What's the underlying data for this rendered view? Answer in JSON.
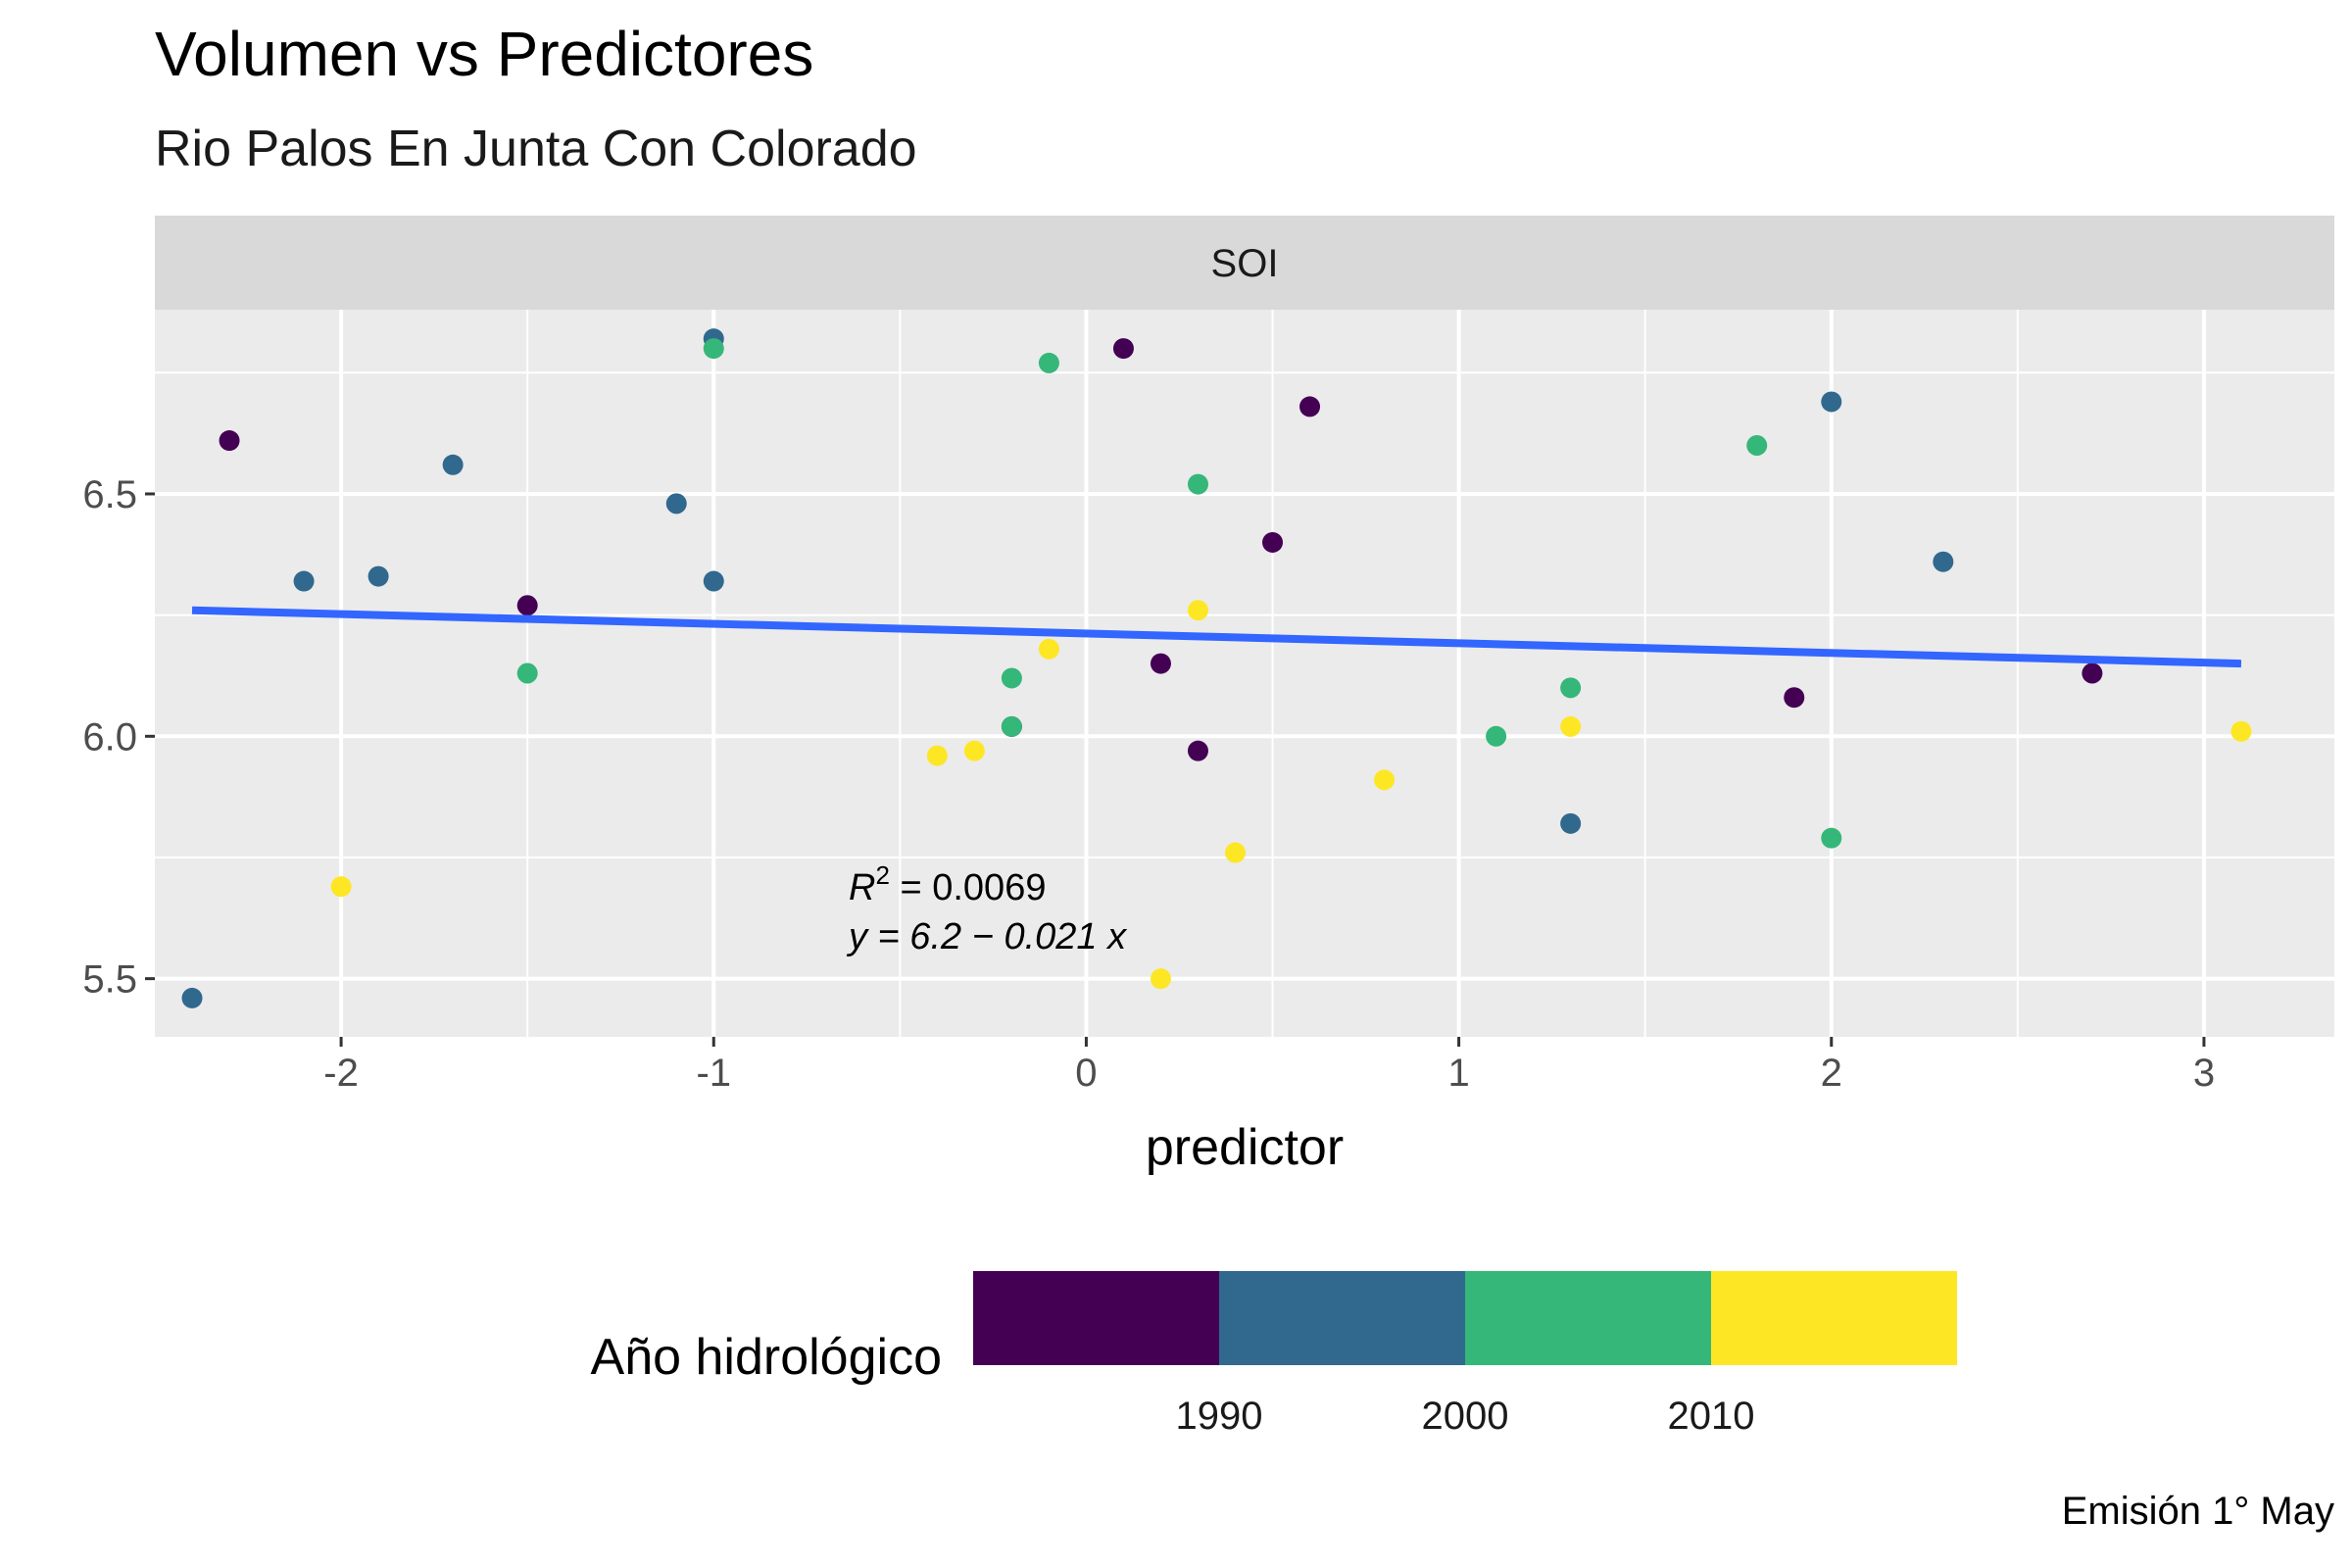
{
  "title": "Volumen vs Predictores",
  "subtitle": "Rio Palos En Junta Con Colorado",
  "caption": "Emisión 1° May",
  "chart_data": {
    "type": "scatter",
    "facet": "SOI",
    "xlabel": "predictor",
    "ylabel": "",
    "xlim": [
      -2.5,
      3.35
    ],
    "ylim": [
      5.38,
      6.88
    ],
    "xticks": [
      -2,
      -1,
      0,
      1,
      2,
      3
    ],
    "xtick_labels": [
      "-2",
      "-1",
      "0",
      "1",
      "2",
      "3"
    ],
    "yticks": [
      5.5,
      6.0,
      6.5
    ],
    "ytick_labels": [
      "5.5",
      "6.0",
      "6.5"
    ],
    "grid": true,
    "points": [
      {
        "x": -2.4,
        "y": 5.46,
        "year": 1992
      },
      {
        "x": -2.3,
        "y": 6.61,
        "year": 1983
      },
      {
        "x": -2.1,
        "y": 6.32,
        "year": 1992
      },
      {
        "x": -2.0,
        "y": 5.69,
        "year": 2015
      },
      {
        "x": -1.9,
        "y": 6.33,
        "year": 1992
      },
      {
        "x": -1.7,
        "y": 6.56,
        "year": 1992
      },
      {
        "x": -1.5,
        "y": 6.27,
        "year": 1983
      },
      {
        "x": -1.5,
        "y": 6.13,
        "year": 2005
      },
      {
        "x": -1.1,
        "y": 6.48,
        "year": 1992
      },
      {
        "x": -1.0,
        "y": 6.82,
        "year": 1992
      },
      {
        "x": -1.0,
        "y": 6.8,
        "year": 2005
      },
      {
        "x": -1.0,
        "y": 6.32,
        "year": 1992
      },
      {
        "x": -0.4,
        "y": 5.96,
        "year": 2015
      },
      {
        "x": -0.3,
        "y": 5.97,
        "year": 2015
      },
      {
        "x": -0.2,
        "y": 6.12,
        "year": 2005
      },
      {
        "x": -0.2,
        "y": 6.02,
        "year": 1983
      },
      {
        "x": -0.2,
        "y": 6.02,
        "year": 2005
      },
      {
        "x": -0.1,
        "y": 6.77,
        "year": 2005
      },
      {
        "x": -0.1,
        "y": 6.18,
        "year": 2015
      },
      {
        "x": 0.1,
        "y": 6.8,
        "year": 1983
      },
      {
        "x": 0.2,
        "y": 6.15,
        "year": 1983
      },
      {
        "x": 0.2,
        "y": 5.5,
        "year": 2015
      },
      {
        "x": 0.3,
        "y": 6.52,
        "year": 2005
      },
      {
        "x": 0.3,
        "y": 6.26,
        "year": 2015
      },
      {
        "x": 0.3,
        "y": 5.97,
        "year": 1983
      },
      {
        "x": 0.4,
        "y": 5.76,
        "year": 2015
      },
      {
        "x": 0.5,
        "y": 6.4,
        "year": 1983
      },
      {
        "x": 0.6,
        "y": 6.68,
        "year": 1983
      },
      {
        "x": 0.8,
        "y": 5.91,
        "year": 2015
      },
      {
        "x": 1.1,
        "y": 6.0,
        "year": 2005
      },
      {
        "x": 1.3,
        "y": 6.1,
        "year": 2005
      },
      {
        "x": 1.3,
        "y": 6.02,
        "year": 2015
      },
      {
        "x": 1.3,
        "y": 5.82,
        "year": 1992
      },
      {
        "x": 1.8,
        "y": 6.6,
        "year": 2005
      },
      {
        "x": 1.9,
        "y": 6.08,
        "year": 1983
      },
      {
        "x": 2.0,
        "y": 6.69,
        "year": 1992
      },
      {
        "x": 2.0,
        "y": 5.79,
        "year": 2005
      },
      {
        "x": 2.3,
        "y": 6.36,
        "year": 1992
      },
      {
        "x": 2.7,
        "y": 6.13,
        "year": 1983
      },
      {
        "x": 3.1,
        "y": 6.01,
        "year": 2015
      }
    ],
    "fit_line": {
      "x": [
        -2.4,
        3.1
      ],
      "y": [
        6.26,
        6.15
      ],
      "color": "#3366ff"
    },
    "annotation": {
      "r2_label": "R",
      "r2_sup": "2",
      "r2_value": " = 0.0069",
      "equation": "y = 6.2 − 0.021 x"
    },
    "legend": {
      "title": "Año hidrológico",
      "position": "bottom",
      "bins": [
        {
          "color": "#440154"
        },
        {
          "color": "#31688e"
        },
        {
          "color": "#35b779"
        },
        {
          "color": "#fde725"
        }
      ],
      "breaks": [
        "1990",
        "2000",
        "2010"
      ]
    },
    "year_colors": {
      "1983": "#440154",
      "1992": "#31688e",
      "2005": "#35b779",
      "2015": "#fde725"
    },
    "colors": {
      "panel_bg": "#ebebeb",
      "strip_bg": "#d9d9d9",
      "grid": "#ffffff",
      "tick_text": "#4d4d4d",
      "strip_text": "#1a1a1a"
    }
  }
}
